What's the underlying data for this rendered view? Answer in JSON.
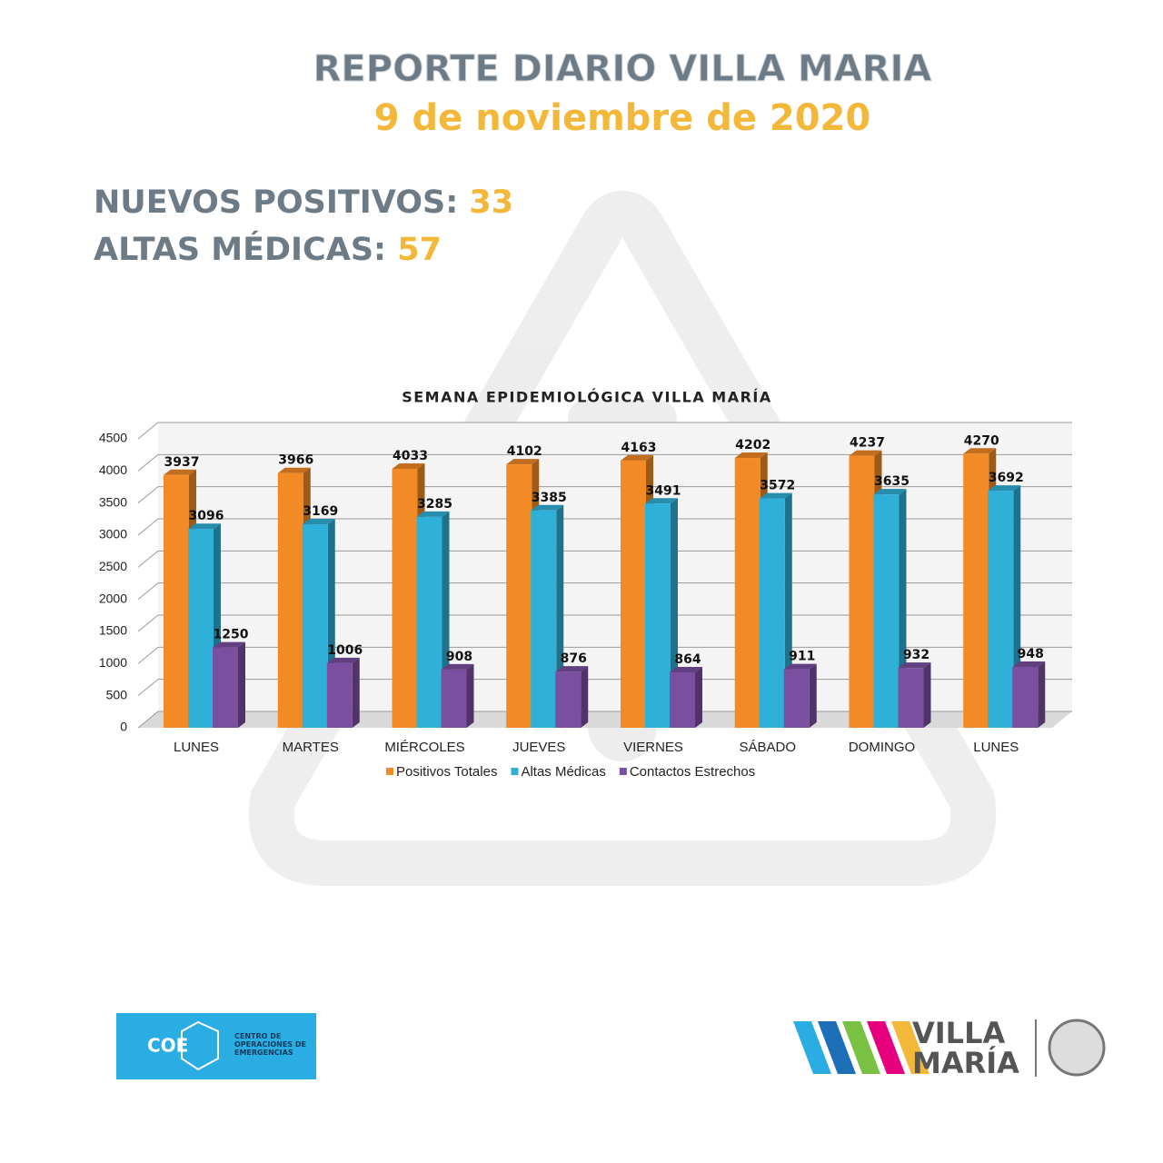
{
  "header": {
    "title": "REPORTE DIARIO VILLA MARIA",
    "date": "9 de noviembre de 2020"
  },
  "stats": [
    {
      "label": "NUEVOS POSITIVOS:",
      "value": 33
    },
    {
      "label": "ALTAS MÉDICAS:",
      "value": 57
    }
  ],
  "chart_data": {
    "type": "bar",
    "title": "SEMANA EPIDEMIOLÓGICA VILLA MARÍA",
    "categories": [
      "LUNES",
      "MARTES",
      "MIÉRCOLES",
      "JUEVES",
      "VIERNES",
      "SÁBADO",
      "DOMINGO",
      "LUNES"
    ],
    "series": [
      {
        "name": "Positivos Totales",
        "color": "#f28a25",
        "values": [
          3937,
          3966,
          4033,
          4102,
          4163,
          4202,
          4237,
          4270
        ]
      },
      {
        "name": "Altas Médicas",
        "color": "#2fb0d8",
        "values": [
          3096,
          3169,
          3285,
          3385,
          3491,
          3572,
          3635,
          3692
        ]
      },
      {
        "name": "Contactos Estrechos",
        "color": "#7b4fa0",
        "values": [
          1250,
          1006,
          908,
          876,
          864,
          911,
          932,
          948
        ]
      }
    ],
    "ylim": [
      0,
      4500
    ],
    "yticks": [
      0,
      500,
      1000,
      1500,
      2000,
      2500,
      3000,
      3500,
      4000,
      4500
    ],
    "grid": true,
    "legend": "bottom"
  },
  "footer": {
    "coe": "COE",
    "coe_full": "CENTRO DE OPERACIONES DE EMERGENCIAS",
    "vm_line1": "VILLA",
    "vm_line2": "MARÍA"
  }
}
